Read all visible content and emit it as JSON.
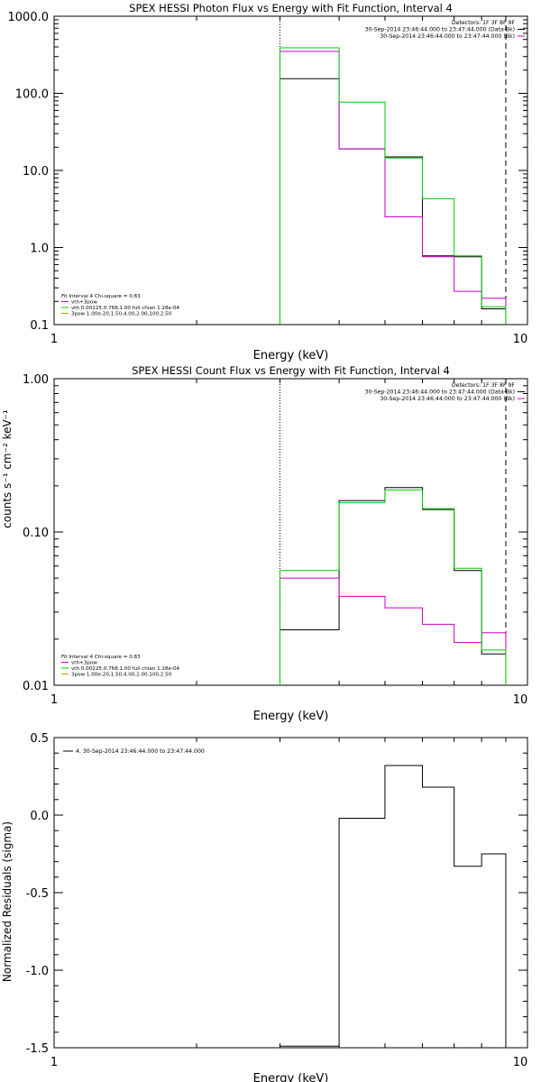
{
  "colors": {
    "black": "#000000",
    "magenta": "#cc00cc",
    "green": "#00cc00",
    "orange": "#cc9900"
  },
  "chart_data": [
    {
      "type": "line",
      "title": "SPEX HESSI Photon Flux vs Energy with Fit Function, Interval 4",
      "xlabel": "Energy (keV)",
      "ylabel": "",
      "xscale": "log",
      "yscale": "log",
      "xlim": [
        1,
        10
      ],
      "ylim": [
        0.1,
        1000
      ],
      "xtick_labels": [
        "1",
        "10"
      ],
      "ytick_values": [
        0.1,
        1,
        10,
        100,
        1000
      ],
      "ytick_labels": [
        "0.1",
        "1.0",
        "10.0",
        "100.0",
        "1000.0"
      ],
      "vlines": [
        {
          "x": 3.0,
          "style": "dotted"
        },
        {
          "x": 9.0,
          "style": "dashed"
        }
      ],
      "legend_tr_lines": [
        {
          "text": "Detectors: 1F 3F 8F 9F",
          "color": "#000000"
        },
        {
          "text": "30-Sep-2014 23:46:44.000 to 23:47:44.000 (Data-Bk)",
          "color": "#000000"
        },
        {
          "text": "30-Sep-2014 23:46:44.000 to 23:47:44.000 (Bk)",
          "color": "#cc00cc"
        }
      ],
      "legend_bl_lines": [
        {
          "text": "Fit Interval 4   Chi-square = 0.83",
          "color": "#000000"
        },
        {
          "text": "vth+3pow",
          "color": "#cc00cc"
        },
        {
          "text": "vth 0.00225,0.768,1.00  full chian 1.28e-04",
          "color": "#00cc00"
        },
        {
          "text": "3pow 1.00e-20,1.50,4.00,2.00,100,2.50",
          "color": "#cc9900"
        }
      ],
      "bin_edges": [
        3.0,
        4.0,
        5.0,
        6.0,
        7.0,
        8.0,
        9.0
      ],
      "series": [
        {
          "color": "#000000",
          "values": [
            155,
            19,
            15,
            0.78,
            0.76,
            0.16
          ]
        },
        {
          "color": "#cc00cc",
          "values": [
            350,
            19,
            2.5,
            0.76,
            0.27,
            0.22
          ]
        },
        {
          "color": "#00cc00",
          "values": [
            390,
            77,
            14.5,
            4.3,
            0.78,
            0.17
          ]
        }
      ]
    },
    {
      "type": "line",
      "title": "SPEX HESSI Count Flux vs Energy with Fit Function, Interval 4",
      "xlabel": "Energy (keV)",
      "ylabel": "counts s⁻¹ cm⁻² keV⁻¹",
      "xscale": "log",
      "yscale": "log",
      "xlim": [
        1,
        10
      ],
      "ylim": [
        0.01,
        1.0
      ],
      "xtick_labels": [
        "1",
        "10"
      ],
      "ytick_values": [
        0.01,
        0.1,
        1.0
      ],
      "ytick_labels": [
        "0.01",
        "0.10",
        "1.00"
      ],
      "vlines": [
        {
          "x": 3.0,
          "style": "dotted"
        },
        {
          "x": 9.0,
          "style": "dashed"
        }
      ],
      "legend_tr_lines": [
        {
          "text": "Detectors: 1F 3F 8F 9F",
          "color": "#000000"
        },
        {
          "text": "30-Sep-2014 23:46:44.000 to 23:47:44.000 (Data-Bk)",
          "color": "#000000"
        },
        {
          "text": "30-Sep-2014 23:46:44.000 to 23:47:44.000 (Bk)",
          "color": "#cc00cc"
        }
      ],
      "legend_bl_lines": [
        {
          "text": "Fit Interval 4   Chi-square = 0.83",
          "color": "#000000"
        },
        {
          "text": "vth+3pow",
          "color": "#cc00cc"
        },
        {
          "text": "vth 0.00225,0.768,1.00  full chian 1.28e-04",
          "color": "#00cc00"
        },
        {
          "text": "3pow 1.00e-20,1.50,4.00,2.00,100,2.50",
          "color": "#cc9900"
        }
      ],
      "bin_edges": [
        3.0,
        4.0,
        5.0,
        6.0,
        7.0,
        8.0,
        9.0
      ],
      "series": [
        {
          "color": "#000000",
          "values": [
            0.023,
            0.16,
            0.195,
            0.14,
            0.056,
            0.016
          ]
        },
        {
          "color": "#cc00cc",
          "values": [
            0.05,
            0.038,
            0.032,
            0.025,
            0.019,
            0.022
          ]
        },
        {
          "color": "#00cc00",
          "values": [
            0.056,
            0.155,
            0.188,
            0.142,
            0.058,
            0.017
          ]
        }
      ]
    },
    {
      "type": "line",
      "title": "",
      "xlabel": "Energy (keV)",
      "ylabel": "Normalized Residuals (sigma)",
      "xscale": "log",
      "yscale": "linear",
      "xlim": [
        1,
        10
      ],
      "ylim": [
        -1.5,
        0.5
      ],
      "xtick_labels": [
        "1",
        "10"
      ],
      "ytick_values": [
        -1.5,
        -1.0,
        -0.5,
        0.0,
        0.5
      ],
      "ytick_labels": [
        "-1.5",
        "-1.0",
        "-0.5",
        "0.0",
        "0.5"
      ],
      "vlines": [],
      "legend_tr_lines": [],
      "legend_bl_lines": [],
      "legend_tl_lines": [
        {
          "text": "4. 30-Sep-2014 23:46:44.000 to 23:47:44.000",
          "color": "#000000"
        }
      ],
      "bin_edges": [
        3.0,
        4.0,
        5.0,
        6.0,
        7.0,
        8.0,
        9.0
      ],
      "series": [
        {
          "color": "#000000",
          "values": [
            -1.49,
            -0.02,
            0.32,
            0.18,
            -0.33,
            -0.25
          ]
        }
      ]
    }
  ]
}
